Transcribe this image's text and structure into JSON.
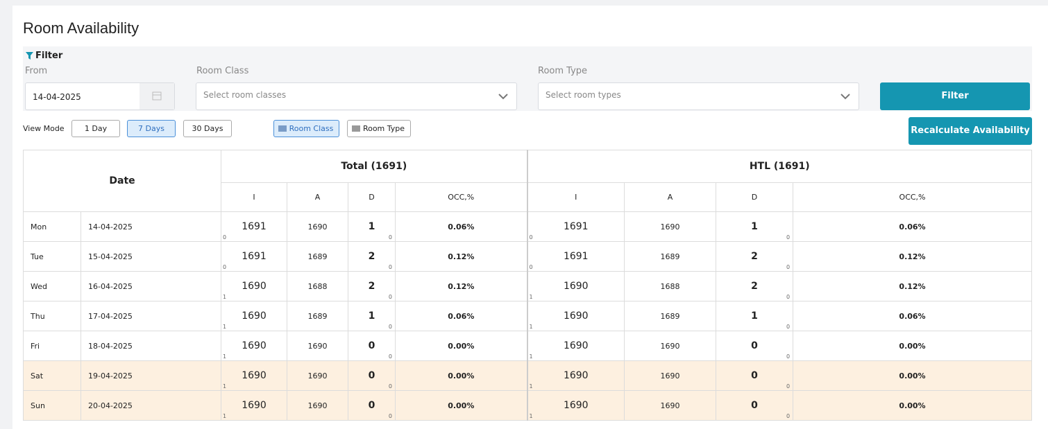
{
  "page": {
    "title": "Room Availability"
  },
  "filter": {
    "label": "Filter",
    "from_label": "From",
    "from_value": "14-04-2025",
    "room_class_label": "Room Class",
    "room_class_placeholder": "Select room classes",
    "room_type_label": "Room Type",
    "room_type_placeholder": "Select room types",
    "button": "Filter"
  },
  "view_mode": {
    "label": "View Mode",
    "options": [
      "1 Day",
      "7 Days",
      "30 Days"
    ],
    "active": 1,
    "groupings": [
      "Room Class",
      "Room Type"
    ],
    "active_grouping": 0,
    "recalculate": "Recalculate Availability"
  },
  "table": {
    "date_header": "Date",
    "groups": [
      "Total (1691)",
      "HTL (1691)"
    ],
    "columns": [
      "I",
      "A",
      "D",
      "OCC,%"
    ],
    "rows": [
      {
        "day": "Mon",
        "date": "14-04-2025",
        "highlight": false,
        "cells": [
          {
            "i": 1691,
            "i_sub": 0,
            "a": 1690,
            "d": 1,
            "d_sub": 0,
            "occ": "0.06%"
          },
          {
            "i": 1691,
            "i_sub": 0,
            "a": 1690,
            "d": 1,
            "d_sub": 0,
            "occ": "0.06%"
          }
        ]
      },
      {
        "day": "Tue",
        "date": "15-04-2025",
        "highlight": false,
        "cells": [
          {
            "i": 1691,
            "i_sub": 0,
            "a": 1689,
            "d": 2,
            "d_sub": 0,
            "occ": "0.12%"
          },
          {
            "i": 1691,
            "i_sub": 0,
            "a": 1689,
            "d": 2,
            "d_sub": 0,
            "occ": "0.12%"
          }
        ]
      },
      {
        "day": "Wed",
        "date": "16-04-2025",
        "highlight": false,
        "cells": [
          {
            "i": 1690,
            "i_sub": 1,
            "a": 1688,
            "d": 2,
            "d_sub": 0,
            "occ": "0.12%"
          },
          {
            "i": 1690,
            "i_sub": 1,
            "a": 1688,
            "d": 2,
            "d_sub": 0,
            "occ": "0.12%"
          }
        ]
      },
      {
        "day": "Thu",
        "date": "17-04-2025",
        "highlight": false,
        "cells": [
          {
            "i": 1690,
            "i_sub": 1,
            "a": 1689,
            "d": 1,
            "d_sub": 0,
            "occ": "0.06%"
          },
          {
            "i": 1690,
            "i_sub": 1,
            "a": 1689,
            "d": 1,
            "d_sub": 0,
            "occ": "0.06%"
          }
        ]
      },
      {
        "day": "Fri",
        "date": "18-04-2025",
        "highlight": false,
        "cells": [
          {
            "i": 1690,
            "i_sub": 1,
            "a": 1690,
            "d": 0,
            "d_sub": 0,
            "occ": "0.00%"
          },
          {
            "i": 1690,
            "i_sub": 1,
            "a": 1690,
            "d": 0,
            "d_sub": 0,
            "occ": "0.00%"
          }
        ]
      },
      {
        "day": "Sat",
        "date": "19-04-2025",
        "highlight": true,
        "cells": [
          {
            "i": 1690,
            "i_sub": 1,
            "a": 1690,
            "d": 0,
            "d_sub": 0,
            "occ": "0.00%"
          },
          {
            "i": 1690,
            "i_sub": 1,
            "a": 1690,
            "d": 0,
            "d_sub": 0,
            "occ": "0.00%"
          }
        ]
      },
      {
        "day": "Sun",
        "date": "20-04-2025",
        "highlight": true,
        "cells": [
          {
            "i": 1690,
            "i_sub": 1,
            "a": 1690,
            "d": 0,
            "d_sub": 0,
            "occ": "0.00%"
          },
          {
            "i": 1690,
            "i_sub": 1,
            "a": 1690,
            "d": 0,
            "d_sub": 0,
            "occ": "0.00%"
          }
        ]
      }
    ]
  }
}
